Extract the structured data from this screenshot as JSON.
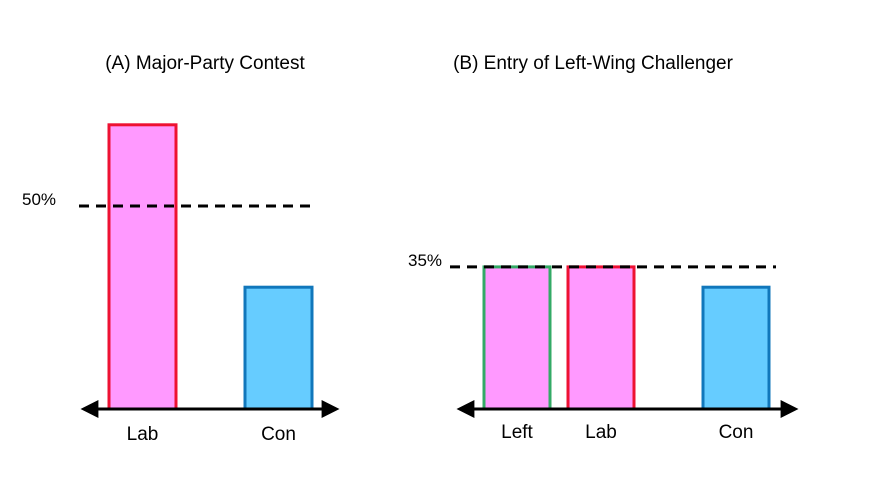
{
  "chart_data": [
    {
      "type": "bar",
      "title": "(A) Major-Party Contest",
      "categories": [
        "Lab",
        "Con"
      ],
      "values": [
        70,
        30
      ],
      "series_colors": [
        {
          "fill": "#ff99ff",
          "stroke": "#ee1133"
        },
        {
          "fill": "#66ccff",
          "stroke": "#1177bb"
        }
      ],
      "reference_line": {
        "value": 50,
        "label": "50%"
      },
      "ylim": [
        0,
        80
      ],
      "axis_arrows": true,
      "grid": false
    },
    {
      "type": "bar",
      "title": "(B) Entry of Left-Wing Challenger",
      "categories": [
        "Left",
        "Lab",
        "Con"
      ],
      "values": [
        35,
        35,
        30
      ],
      "series_colors": [
        {
          "fill": "#ff99ff",
          "stroke": "#33aa66"
        },
        {
          "fill": "#ff99ff",
          "stroke": "#ee1133"
        },
        {
          "fill": "#66ccff",
          "stroke": "#1177bb"
        }
      ],
      "reference_line": {
        "value": 35,
        "label": "35%"
      },
      "ylim": [
        0,
        80
      ],
      "axis_arrows": true,
      "grid": false
    }
  ]
}
